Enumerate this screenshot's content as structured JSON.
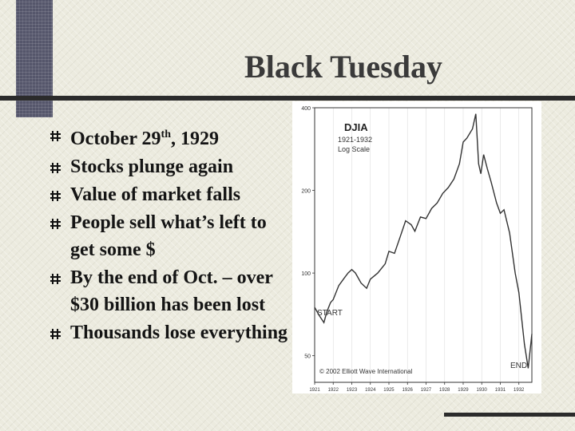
{
  "slide": {
    "title": "Black Tuesday",
    "bullets": [
      {
        "parts": [
          "October 29",
          "th",
          ", 1929"
        ]
      },
      {
        "text": "Stocks plunge again"
      },
      {
        "text": "Value of market falls"
      },
      {
        "text": "People sell what’s left to get some $"
      },
      {
        "text": "By the end of Oct. – over $30 billion has been lost"
      },
      {
        "text": "Thousands lose everything"
      }
    ]
  },
  "chart_data": {
    "type": "line",
    "title": "DJIA",
    "subtitle": "1921-1932",
    "scale_label": "Log Scale",
    "log_scale": true,
    "ylim": [
      40,
      400
    ],
    "y_ticks": [
      {
        "value": 400,
        "label": "400"
      },
      {
        "value": 200,
        "label": "200"
      },
      {
        "value": 100,
        "label": "100"
      },
      {
        "value": 50,
        "label": "50"
      }
    ],
    "x_ticks": [
      "1921",
      "1922",
      "1923",
      "1924",
      "1925",
      "1926",
      "1927",
      "1928",
      "1929",
      "1930",
      "1931",
      "1932"
    ],
    "xlim": [
      1921,
      1932.7
    ],
    "series": [
      {
        "x": [
          1921.0,
          1921.25,
          1921.5,
          1921.65,
          1921.85,
          1922.0,
          1922.3,
          1922.6,
          1922.8,
          1923.0,
          1923.2,
          1923.5,
          1923.8,
          1924.0,
          1924.4,
          1924.8,
          1925.0,
          1925.3,
          1925.6,
          1925.9,
          1926.2,
          1926.4,
          1926.7,
          1927.0,
          1927.3,
          1927.6,
          1927.9,
          1928.2,
          1928.5,
          1928.8,
          1929.0,
          1929.2,
          1929.5,
          1929.68,
          1929.83,
          1929.95,
          1930.1,
          1930.3,
          1930.5,
          1930.8,
          1931.0,
          1931.2,
          1931.5,
          1931.8,
          1932.0,
          1932.3,
          1932.5,
          1932.7
        ],
        "values": [
          75,
          70,
          66,
          72,
          78,
          80,
          90,
          96,
          100,
          103,
          100,
          92,
          88,
          95,
          100,
          108,
          120,
          118,
          135,
          155,
          150,
          142,
          160,
          158,
          172,
          180,
          195,
          205,
          220,
          250,
          300,
          310,
          335,
          380,
          250,
          230,
          270,
          240,
          215,
          180,
          165,
          170,
          140,
          100,
          85,
          55,
          45,
          60
        ]
      }
    ],
    "annotations": {
      "start": "START",
      "end": "END"
    },
    "copyright": "© 2002 Elliott Wave International"
  }
}
